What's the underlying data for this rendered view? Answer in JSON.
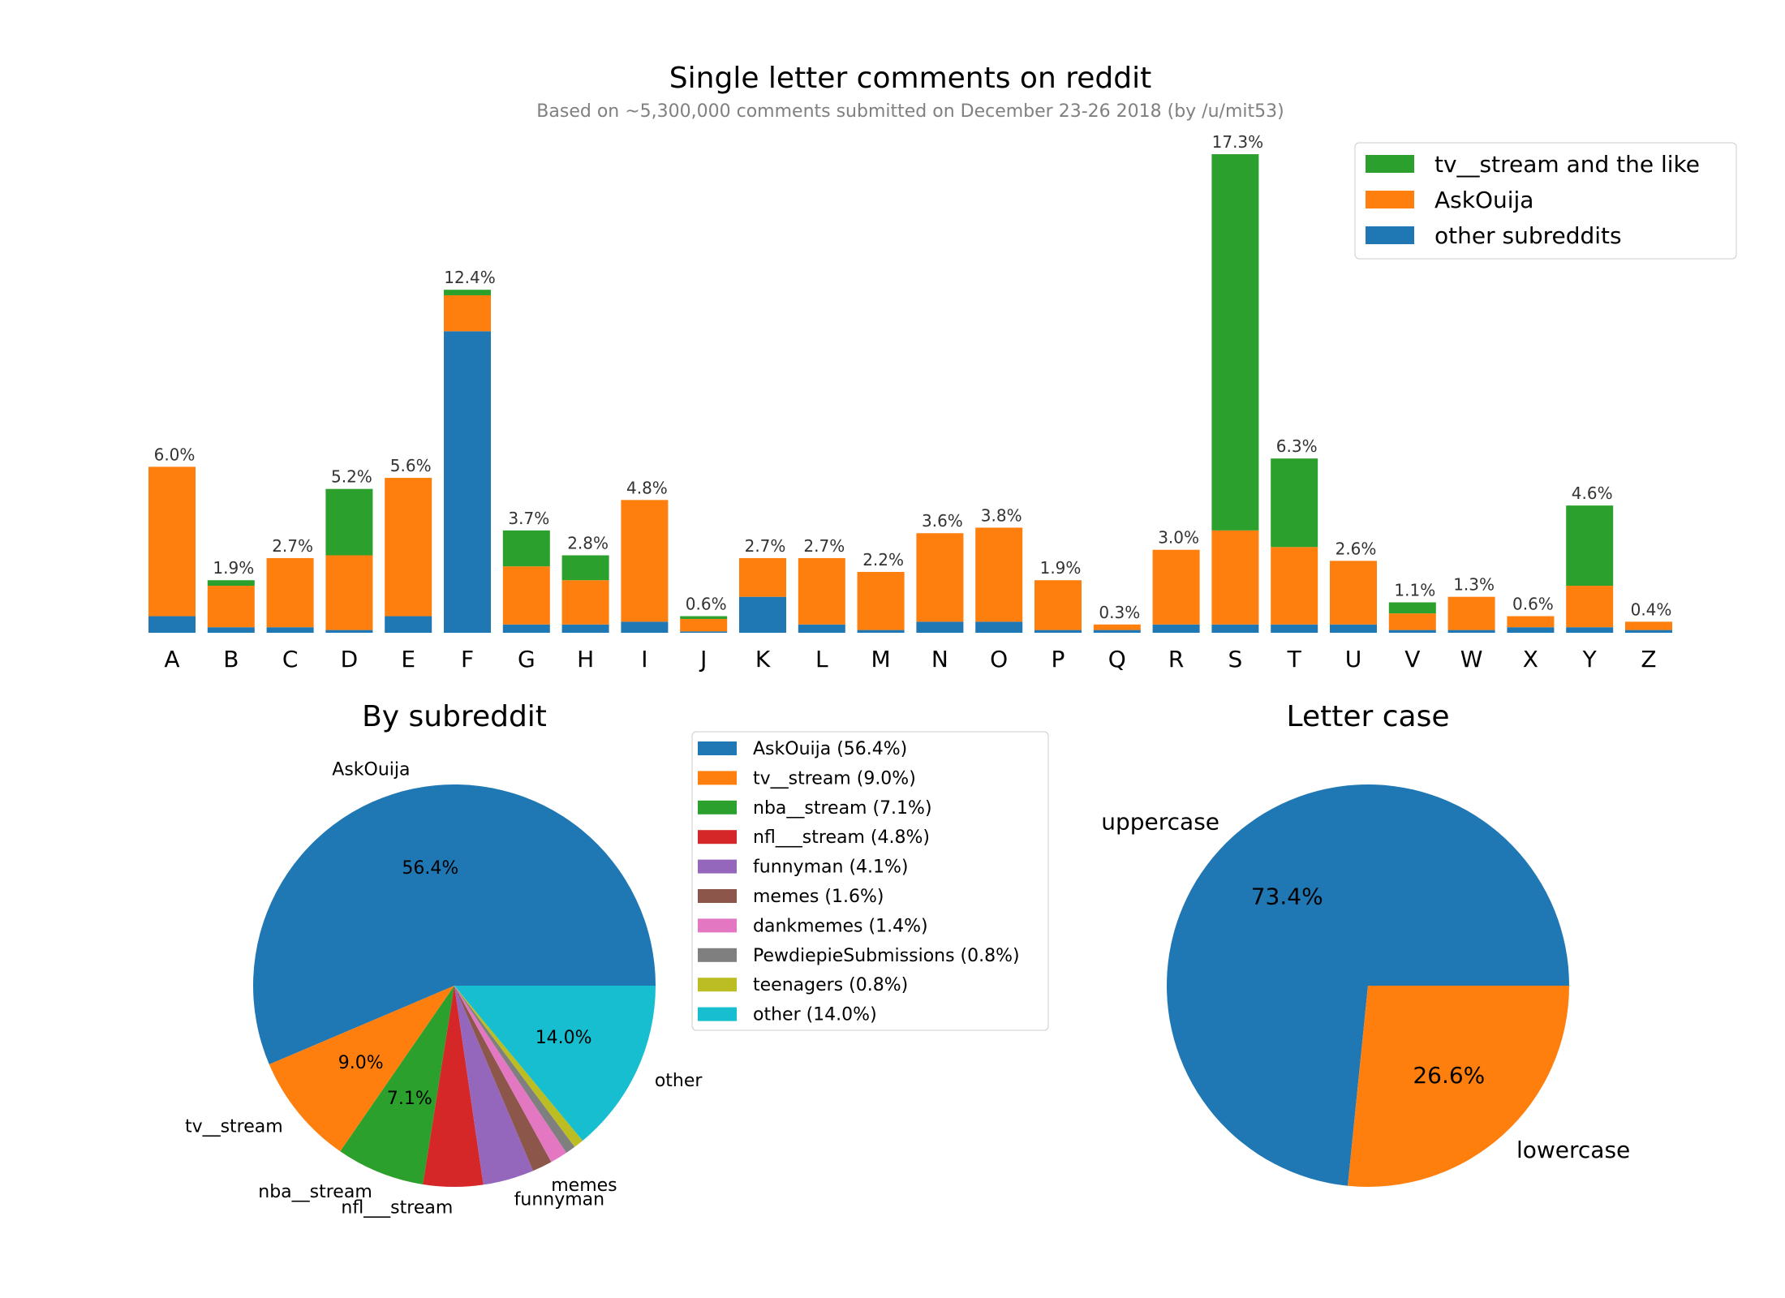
{
  "title": "Single letter comments on reddit",
  "subtitle": "Based on ~5,300,000 comments submitted on December 23-26 2018 (by /u/mit53)",
  "colors": {
    "blue": "#1f77b4",
    "orange": "#ff7f0e",
    "green": "#2ca02c",
    "red": "#d62728",
    "purple": "#9467bd",
    "brown": "#8c564b",
    "pink": "#e377c2",
    "gray": "#7f7f7f",
    "olive": "#bcbd22",
    "cyan": "#17becf"
  },
  "chart_data": [
    {
      "type": "bar",
      "stacked": true,
      "title": "",
      "xlabel": "",
      "ylabel": "",
      "categories": [
        "A",
        "B",
        "C",
        "D",
        "E",
        "F",
        "G",
        "H",
        "I",
        "J",
        "K",
        "L",
        "M",
        "N",
        "O",
        "P",
        "Q",
        "R",
        "S",
        "T",
        "U",
        "V",
        "W",
        "X",
        "Y",
        "Z"
      ],
      "series": [
        {
          "name": "other subreddits",
          "color": "#1f77b4",
          "values": [
            0.6,
            0.2,
            0.2,
            0.1,
            0.6,
            10.9,
            0.3,
            0.3,
            0.4,
            0.05,
            1.3,
            0.3,
            0.1,
            0.4,
            0.4,
            0.1,
            0.1,
            0.3,
            0.3,
            0.3,
            0.3,
            0.1,
            0.1,
            0.2,
            0.2,
            0.1
          ]
        },
        {
          "name": "AskOuija",
          "color": "#ff7f0e",
          "values": [
            5.4,
            1.5,
            2.5,
            2.7,
            5.0,
            1.3,
            2.1,
            1.6,
            4.4,
            0.45,
            1.4,
            2.4,
            2.1,
            3.2,
            3.4,
            1.8,
            0.2,
            2.7,
            3.4,
            2.8,
            2.3,
            0.6,
            1.2,
            0.4,
            1.5,
            0.3
          ]
        },
        {
          "name": "tv__stream and the like",
          "color": "#2ca02c",
          "values": [
            0,
            0.2,
            0,
            2.4,
            0,
            0.2,
            1.3,
            0.9,
            0,
            0.1,
            0,
            0,
            0,
            0,
            0,
            0,
            0,
            0,
            13.6,
            3.2,
            0,
            0.4,
            0,
            0,
            2.9,
            0
          ]
        }
      ],
      "totals_labels": [
        "6.0%",
        "1.9%",
        "2.7%",
        "5.2%",
        "5.6%",
        "12.4%",
        "3.7%",
        "2.8%",
        "4.8%",
        "0.6%",
        "2.7%",
        "2.7%",
        "2.2%",
        "3.6%",
        "3.8%",
        "1.9%",
        "0.3%",
        "3.0%",
        "17.3%",
        "6.3%",
        "2.6%",
        "1.1%",
        "1.3%",
        "0.6%",
        "4.6%",
        "0.4%"
      ],
      "legend": [
        "tv__stream and the like",
        "AskOuija",
        "other subreddits"
      ],
      "legend_placement": "top-right",
      "ylim": [
        0,
        18
      ],
      "grid": false
    },
    {
      "type": "pie",
      "title": "By subreddit",
      "labels": [
        "AskOuija",
        "tv__stream",
        "nba__stream",
        "nfl___stream",
        "funnyman",
        "memes",
        "",
        "",
        "",
        "other"
      ],
      "values": [
        56.4,
        9.0,
        7.1,
        4.8,
        4.1,
        1.6,
        1.4,
        0.8,
        0.8,
        14.0
      ],
      "pct_labels": [
        "56.4%",
        "9.0%",
        "7.1%",
        "",
        "",
        "",
        "",
        "",
        "",
        "14.0%"
      ],
      "colors": [
        "#1f77b4",
        "#ff7f0e",
        "#2ca02c",
        "#d62728",
        "#9467bd",
        "#8c564b",
        "#e377c2",
        "#7f7f7f",
        "#bcbd22",
        "#17becf"
      ],
      "legend": [
        "AskOuija (56.4%)",
        "tv__stream (9.0%)",
        "nba__stream (7.1%)",
        "nfl___stream (4.8%)",
        "funnyman (4.1%)",
        "memes (1.6%)",
        "dankmemes (1.4%)",
        "PewdiepieSubmissions (0.8%)",
        "teenagers (0.8%)",
        "other (14.0%)"
      ],
      "legend_placement": "right"
    },
    {
      "type": "pie",
      "title": "Letter case",
      "labels": [
        "uppercase",
        "lowercase"
      ],
      "values": [
        73.4,
        26.6
      ],
      "pct_labels": [
        "73.4%",
        "26.6%"
      ],
      "colors": [
        "#1f77b4",
        "#ff7f0e"
      ]
    }
  ]
}
